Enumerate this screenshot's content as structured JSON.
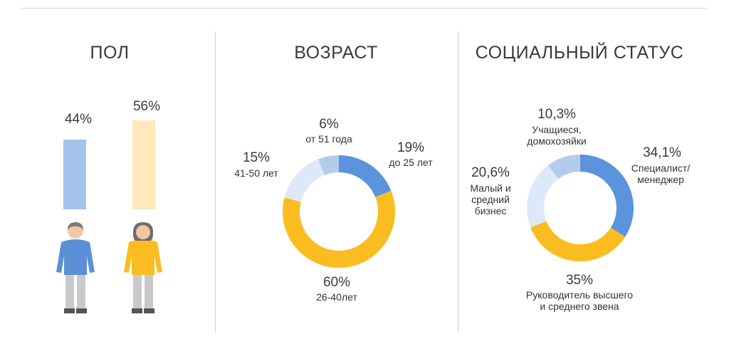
{
  "colors": {
    "male": "#a3c3ea",
    "female": "#fde9ba",
    "male_figure": "#5b8fd6",
    "female_figure": "#fbbc21",
    "pants": "#c9c9c9",
    "skin": "#f2c7a5",
    "hair_male": "#7a7a7a",
    "hair_female": "#6e6e6e",
    "donut": [
      "#5b93dc",
      "#fbbc21",
      "#dde9f8",
      "#b4ccec"
    ]
  },
  "chart_data": [
    {
      "type": "bar",
      "title": "ПОЛ",
      "categories": [
        "male",
        "female"
      ],
      "values": [
        44,
        56
      ],
      "value_labels": [
        "44%",
        "56%"
      ],
      "icons": [
        "man-figure-icon",
        "woman-figure-icon"
      ]
    },
    {
      "type": "pie",
      "title": "ВОЗРАСТ",
      "slices": [
        {
          "value": 19,
          "value_label": "19%",
          "label": "до 25 лет"
        },
        {
          "value": 60,
          "value_label": "60%",
          "label": "26-40лет"
        },
        {
          "value": 15,
          "value_label": "15%",
          "label": "41-50 лет"
        },
        {
          "value": 6,
          "value_label": "6%",
          "label": "от 51 года"
        }
      ]
    },
    {
      "type": "pie",
      "title": "СОЦИАЛЬНЫЙ СТАТУС",
      "slices": [
        {
          "value": 34.1,
          "value_label": "34,1%",
          "label": "Специалист/ менеджер"
        },
        {
          "value": 35,
          "value_label": "35%",
          "label": "Руководитель высшего и среднего звена"
        },
        {
          "value": 20.6,
          "value_label": "20,6%",
          "label": "Малый и средний бизнес"
        },
        {
          "value": 10.3,
          "value_label": "10,3%",
          "label": "Учащиеся, домохозяйки"
        }
      ]
    }
  ]
}
